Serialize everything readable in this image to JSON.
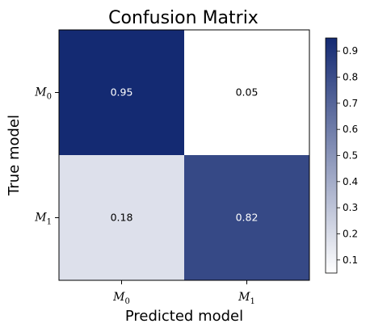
{
  "chart_data": {
    "type": "heatmap",
    "title": "Confusion Matrix",
    "xlabel": "Predicted model",
    "ylabel": "True model",
    "x_categories": [
      {
        "base": "M",
        "sub": "0"
      },
      {
        "base": "M",
        "sub": "1"
      }
    ],
    "y_categories": [
      {
        "base": "M",
        "sub": "0"
      },
      {
        "base": "M",
        "sub": "1"
      }
    ],
    "values": [
      [
        0.95,
        0.05
      ],
      [
        0.18,
        0.82
      ]
    ],
    "cell_labels": [
      [
        "0.95",
        "0.05"
      ],
      [
        "0.18",
        "0.82"
      ]
    ],
    "colorbar": {
      "range": [
        0.05,
        0.95
      ],
      "ticks": [
        0.1,
        0.2,
        0.3,
        0.4,
        0.5,
        0.6,
        0.7,
        0.8,
        0.9
      ],
      "tick_labels": [
        "0.1",
        "0.2",
        "0.3",
        "0.4",
        "0.5",
        "0.6",
        "0.7",
        "0.8",
        "0.9"
      ],
      "colors": [
        "#ffffff",
        "#142a72"
      ]
    },
    "text_colors": {
      "dark": "#ffffff",
      "light": "#000000"
    },
    "grid": false
  }
}
